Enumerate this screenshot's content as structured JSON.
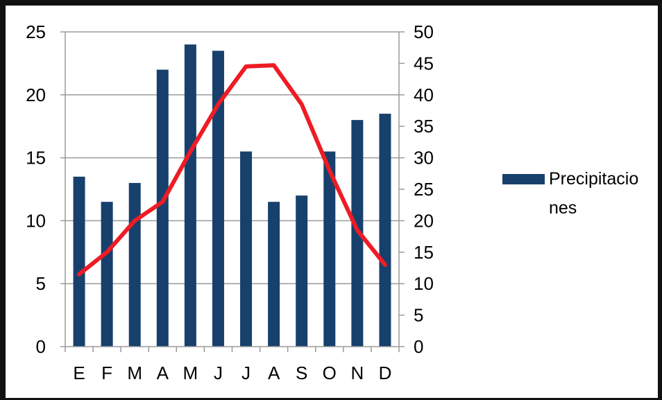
{
  "chart_data": {
    "type": "bar",
    "title": "",
    "xlabel": "",
    "ylabel": "",
    "categories": [
      "E",
      "F",
      "M",
      "A",
      "M",
      "J",
      "J",
      "A",
      "S",
      "O",
      "N",
      "D"
    ],
    "series": [
      {
        "name": "Precipitaciones",
        "type": "bar",
        "axis": "left",
        "color": "#17406D",
        "values": [
          13.5,
          11.5,
          13,
          22,
          24,
          23.5,
          15.5,
          11.5,
          12,
          15.5,
          18,
          18.5
        ]
      },
      {
        "type": "line",
        "axis": "right",
        "color": "#EE1C24",
        "values": [
          11.5,
          15,
          20,
          23,
          31,
          38.5,
          44.5,
          44.7,
          38.5,
          28,
          18.5,
          13
        ]
      }
    ],
    "ylim": [
      0,
      25
    ],
    "y_ticks": [
      "0",
      "5",
      "10",
      "15",
      "20",
      "25"
    ],
    "y2lim": [
      0,
      50
    ],
    "y2_ticks": [
      "0",
      "5",
      "10",
      "15",
      "20",
      "25",
      "30",
      "35",
      "40",
      "45",
      "50"
    ],
    "grid": true,
    "legend": {
      "position": "right",
      "entries": [
        {
          "label_lines": [
            "Precipitacio",
            "nes"
          ],
          "color": "#17406D"
        }
      ]
    }
  }
}
